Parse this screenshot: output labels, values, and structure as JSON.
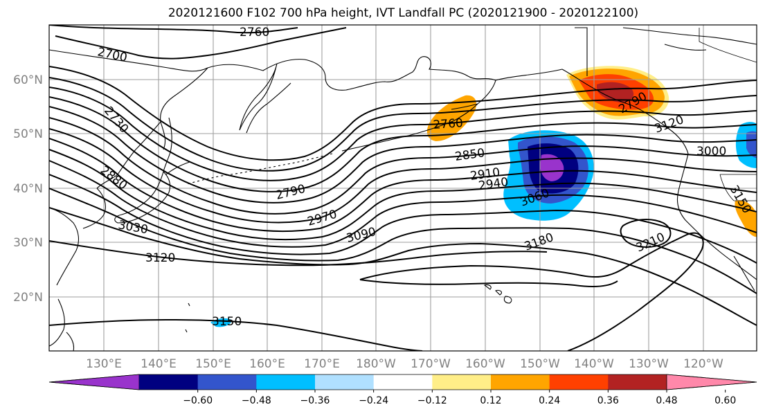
{
  "title": "2020121600 F102 700 hPa height, IVT Landfall PC (2020121900 - 2020122100)",
  "lat_labels": [
    "60°N",
    "50°N",
    "40°N",
    "30°N",
    "20°N"
  ],
  "lon_labels": [
    "130°E",
    "140°E",
    "150°E",
    "160°E",
    "170°E",
    "180°W",
    "170°W",
    "160°W",
    "150°W",
    "140°W",
    "130°W",
    "120°W"
  ],
  "contour_labels": [
    "2760",
    "2700",
    "2730",
    "2880",
    "3030",
    "3120",
    "3150",
    "2790",
    "2970",
    "3090",
    "2760",
    "2850",
    "2910",
    "2940",
    "3060",
    "3180",
    "3210",
    "2790",
    "3120",
    "3000",
    "3150"
  ],
  "colorbar": {
    "tick_labels": [
      "−0.60",
      "−0.48",
      "−0.36",
      "−0.24",
      "−0.12",
      "0.12",
      "0.24",
      "0.36",
      "0.48",
      "0.60"
    ],
    "colors": [
      "#9933cc",
      "#000080",
      "#3355cc",
      "#00bfff",
      "#b0e0ff",
      "#ffffff",
      "#ffee88",
      "#ffa500",
      "#ff4000",
      "#b22222",
      "#ff88aa"
    ]
  }
}
